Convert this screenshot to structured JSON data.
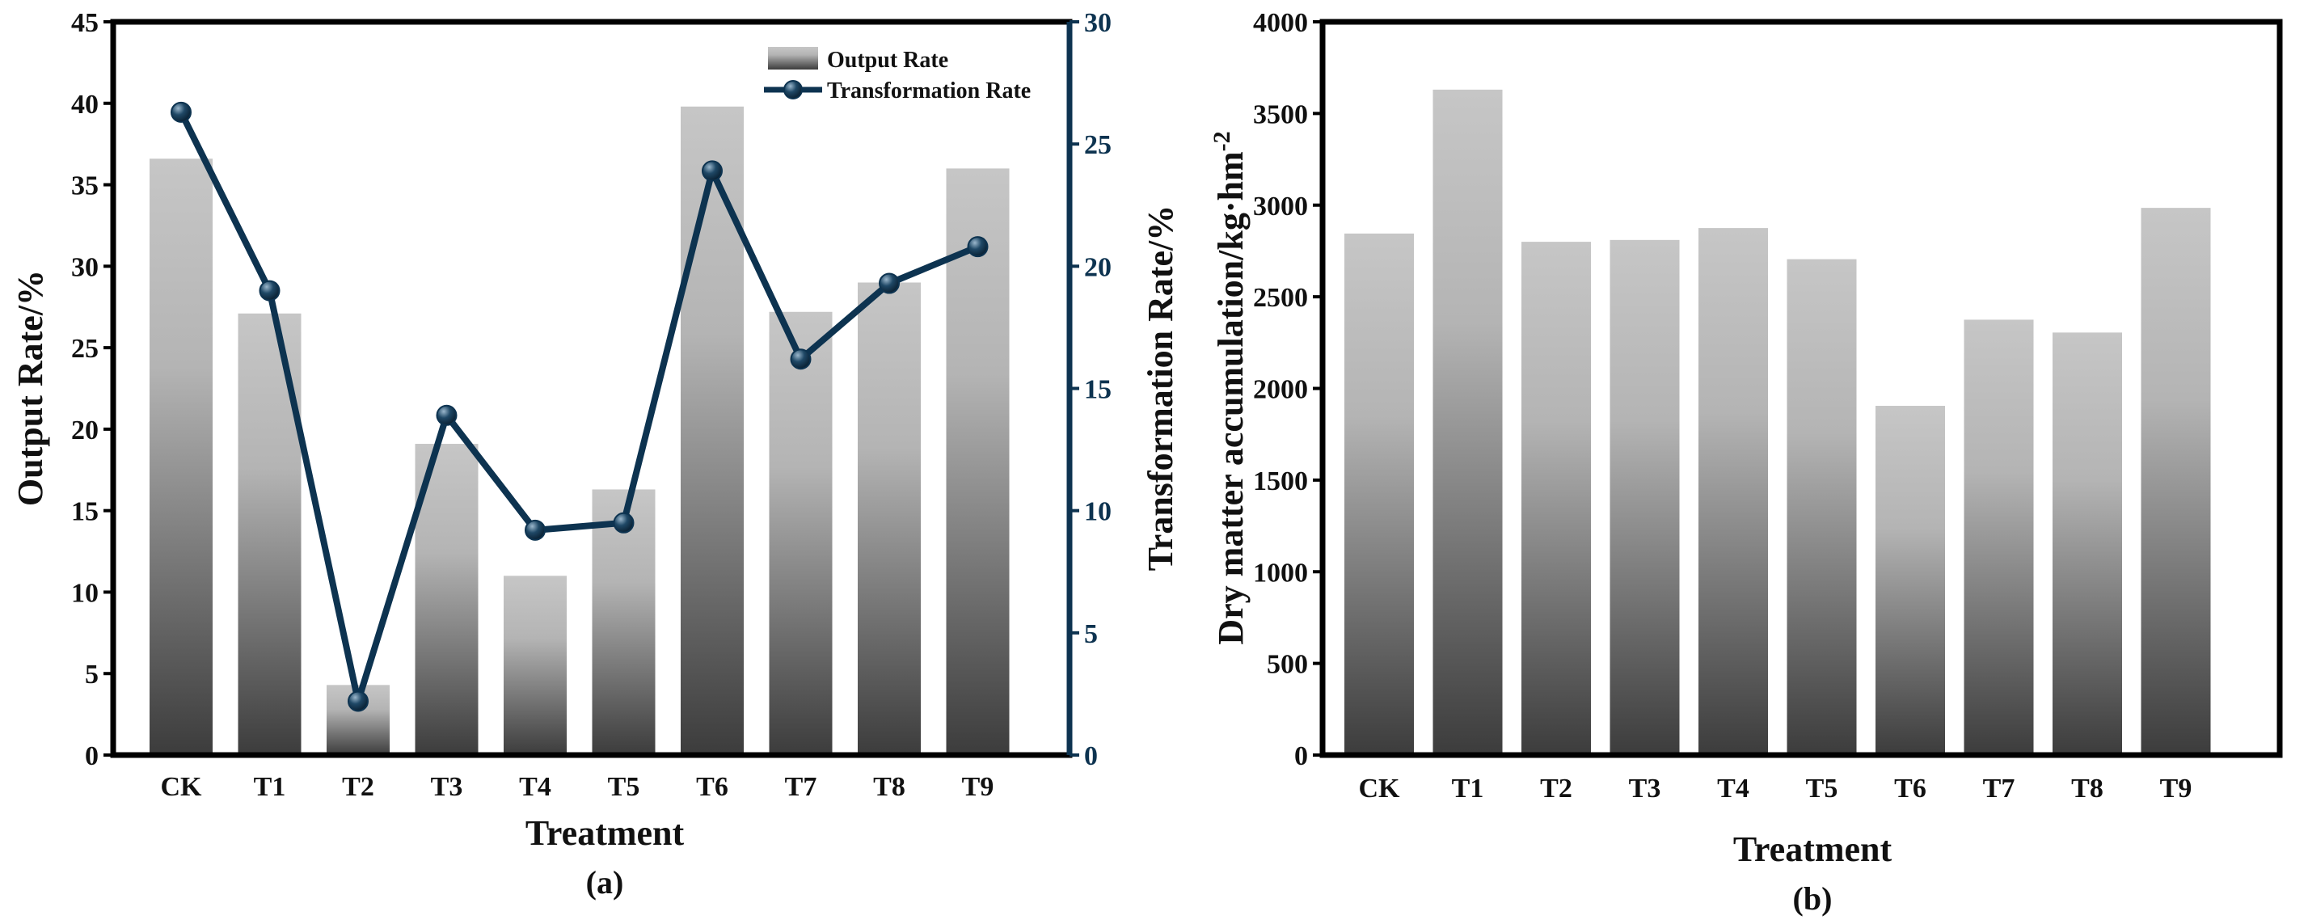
{
  "chart_data": [
    {
      "panel": "(a)",
      "type": "bar+line",
      "categories": [
        "CK",
        "T1",
        "T2",
        "T3",
        "T4",
        "T5",
        "T6",
        "T7",
        "T8",
        "T9"
      ],
      "xlabel": "Treatment",
      "ylabel_left": "Output Rate/%",
      "ylabel_right": "Transformation Rate/%",
      "ylim_left": [
        0,
        45
      ],
      "ylim_right": [
        0,
        30
      ],
      "yticks_left": [
        "0",
        "5",
        "10",
        "15",
        "20",
        "25",
        "30",
        "35",
        "40",
        "45"
      ],
      "yticks_right": [
        "0",
        "5",
        "10",
        "15",
        "20",
        "25",
        "30"
      ],
      "series": [
        {
          "name": "Output Rate",
          "type": "bar",
          "axis": "left",
          "values": [
            36.6,
            27.1,
            4.3,
            19.1,
            11.0,
            16.3,
            39.8,
            27.2,
            29.0,
            36.0
          ]
        },
        {
          "name": "Transformation Rate",
          "type": "line",
          "axis": "right",
          "values": [
            26.3,
            19.0,
            2.2,
            13.9,
            9.2,
            9.5,
            23.9,
            16.2,
            19.3,
            20.8
          ]
        }
      ],
      "legend_position": "top-right"
    },
    {
      "panel": "(b)",
      "type": "bar",
      "categories": [
        "CK",
        "T1",
        "T2",
        "T3",
        "T4",
        "T5",
        "T6",
        "T7",
        "T8",
        "T9"
      ],
      "xlabel": "Treatment",
      "ylabel": "Dry matter accumulation/kg·hm",
      "ylabel_superscript": "-2",
      "ylim": [
        0,
        4000
      ],
      "yticks": [
        "0",
        "500",
        "1000",
        "1500",
        "2000",
        "2500",
        "3000",
        "3500",
        "4000"
      ],
      "values": [
        2845,
        3630,
        2800,
        2810,
        2875,
        2705,
        1905,
        2375,
        2305,
        2985
      ]
    }
  ],
  "colors": {
    "frame": "#000000",
    "right_axis": "#0d3350",
    "line": "#0d3350",
    "bar_top": "#c6c6c6",
    "bar_bottom": "#3c3c3c"
  }
}
